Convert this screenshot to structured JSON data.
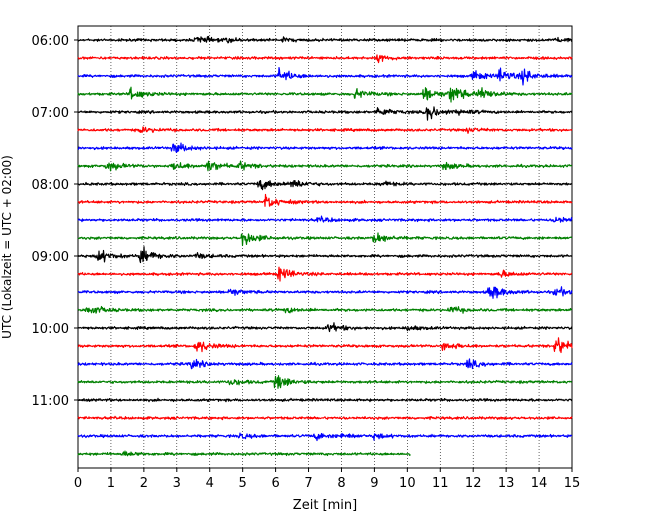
{
  "chart_data": {
    "type": "line",
    "title": "",
    "xlabel": "Zeit  [min]",
    "ylabel": "UTC (Lokalzeit = UTC + 02:00)",
    "xlim": [
      0,
      15
    ],
    "x_ticks": [
      0,
      1,
      2,
      3,
      4,
      5,
      6,
      7,
      8,
      9,
      10,
      11,
      12,
      13,
      14,
      15
    ],
    "x_tick_labels": [
      "0",
      "1",
      "2",
      "3",
      "4",
      "5",
      "6",
      "7",
      "8",
      "9",
      "10",
      "11",
      "12",
      "13",
      "14",
      "15"
    ],
    "y_tick_labels": [
      "06:00",
      "07:00",
      "08:00",
      "09:00",
      "10:00",
      "11:00"
    ],
    "grid": "vertical dotted",
    "trace_colors": [
      "#000000",
      "#ff0000",
      "#0000ff",
      "#008000"
    ],
    "traces": [
      {
        "start": "06:00",
        "color": "#000000",
        "x_end": 15,
        "events": [
          [
            3.6,
            3.5
          ],
          [
            4.5,
            1.5
          ],
          [
            6.2,
            1.5
          ],
          [
            14.5,
            2
          ]
        ]
      },
      {
        "start": "06:15",
        "color": "#ff0000",
        "x_end": 15,
        "events": [
          [
            9.1,
            2.5
          ]
        ]
      },
      {
        "start": "06:30",
        "color": "#0000ff",
        "x_end": 15,
        "events": [
          [
            6.1,
            6
          ],
          [
            12.0,
            4
          ],
          [
            12.8,
            6
          ],
          [
            13.5,
            5
          ]
        ]
      },
      {
        "start": "06:45",
        "color": "#008000",
        "x_end": 15,
        "events": [
          [
            1.6,
            5
          ],
          [
            8.4,
            4
          ],
          [
            10.5,
            6
          ],
          [
            11.3,
            8
          ],
          [
            12.2,
            5
          ]
        ]
      },
      {
        "start": "07:00",
        "color": "#000000",
        "x_end": 15,
        "events": [
          [
            9.1,
            4
          ],
          [
            10.6,
            7
          ],
          [
            11.6,
            2
          ]
        ]
      },
      {
        "start": "07:15",
        "color": "#ff0000",
        "x_end": 15,
        "events": [
          [
            1.9,
            2.5
          ],
          [
            11.8,
            2
          ]
        ]
      },
      {
        "start": "07:30",
        "color": "#0000ff",
        "x_end": 15,
        "events": [
          [
            2.9,
            5
          ]
        ]
      },
      {
        "start": "07:45",
        "color": "#008000",
        "x_end": 15,
        "events": [
          [
            0.9,
            4
          ],
          [
            2.9,
            4
          ],
          [
            3.9,
            5
          ],
          [
            4.9,
            3
          ],
          [
            11.1,
            3
          ]
        ]
      },
      {
        "start": "08:00",
        "color": "#000000",
        "x_end": 15,
        "events": [
          [
            5.5,
            5
          ],
          [
            6.5,
            4
          ],
          [
            9.2,
            2
          ]
        ]
      },
      {
        "start": "08:15",
        "color": "#ff0000",
        "x_end": 15,
        "events": [
          [
            5.7,
            6
          ]
        ]
      },
      {
        "start": "08:30",
        "color": "#0000ff",
        "x_end": 15,
        "events": [
          [
            7.3,
            2
          ],
          [
            14.5,
            3
          ]
        ]
      },
      {
        "start": "08:45",
        "color": "#008000",
        "x_end": 15,
        "events": [
          [
            5.0,
            7
          ],
          [
            9.0,
            5
          ]
        ]
      },
      {
        "start": "09:00",
        "color": "#000000",
        "x_end": 15,
        "events": [
          [
            0.6,
            6
          ],
          [
            1.9,
            7
          ],
          [
            3.6,
            2
          ]
        ]
      },
      {
        "start": "09:15",
        "color": "#ff0000",
        "x_end": 15,
        "events": [
          [
            6.1,
            6
          ],
          [
            12.8,
            3
          ]
        ]
      },
      {
        "start": "09:30",
        "color": "#0000ff",
        "x_end": 15,
        "events": [
          [
            4.6,
            3
          ],
          [
            12.5,
            7
          ],
          [
            14.5,
            4
          ]
        ]
      },
      {
        "start": "09:45",
        "color": "#008000",
        "x_end": 15,
        "events": [
          [
            0.3,
            5
          ],
          [
            6.3,
            2
          ],
          [
            11.3,
            3
          ]
        ]
      },
      {
        "start": "10:00",
        "color": "#000000",
        "x_end": 15,
        "events": [
          [
            7.6,
            4
          ],
          [
            10.0,
            2
          ]
        ]
      },
      {
        "start": "10:15",
        "color": "#ff0000",
        "x_end": 15,
        "events": [
          [
            3.6,
            6
          ],
          [
            11.1,
            4
          ],
          [
            14.5,
            9
          ]
        ]
      },
      {
        "start": "10:30",
        "color": "#0000ff",
        "x_end": 15,
        "events": [
          [
            3.4,
            4
          ],
          [
            11.8,
            4
          ]
        ]
      },
      {
        "start": "10:45",
        "color": "#008000",
        "x_end": 15,
        "events": [
          [
            4.6,
            3
          ],
          [
            6.0,
            7
          ]
        ]
      },
      {
        "start": "11:00",
        "color": "#000000",
        "x_end": 15,
        "events": []
      },
      {
        "start": "11:15",
        "color": "#ff0000",
        "x_end": 15,
        "events": []
      },
      {
        "start": "11:30",
        "color": "#0000ff",
        "x_end": 15,
        "events": [
          [
            4.9,
            2
          ],
          [
            7.2,
            3
          ],
          [
            8.0,
            2
          ],
          [
            9.0,
            2
          ]
        ]
      },
      {
        "start": "11:45",
        "color": "#008000",
        "x_end": 10.1,
        "events": [
          [
            1.4,
            2
          ]
        ]
      }
    ]
  }
}
